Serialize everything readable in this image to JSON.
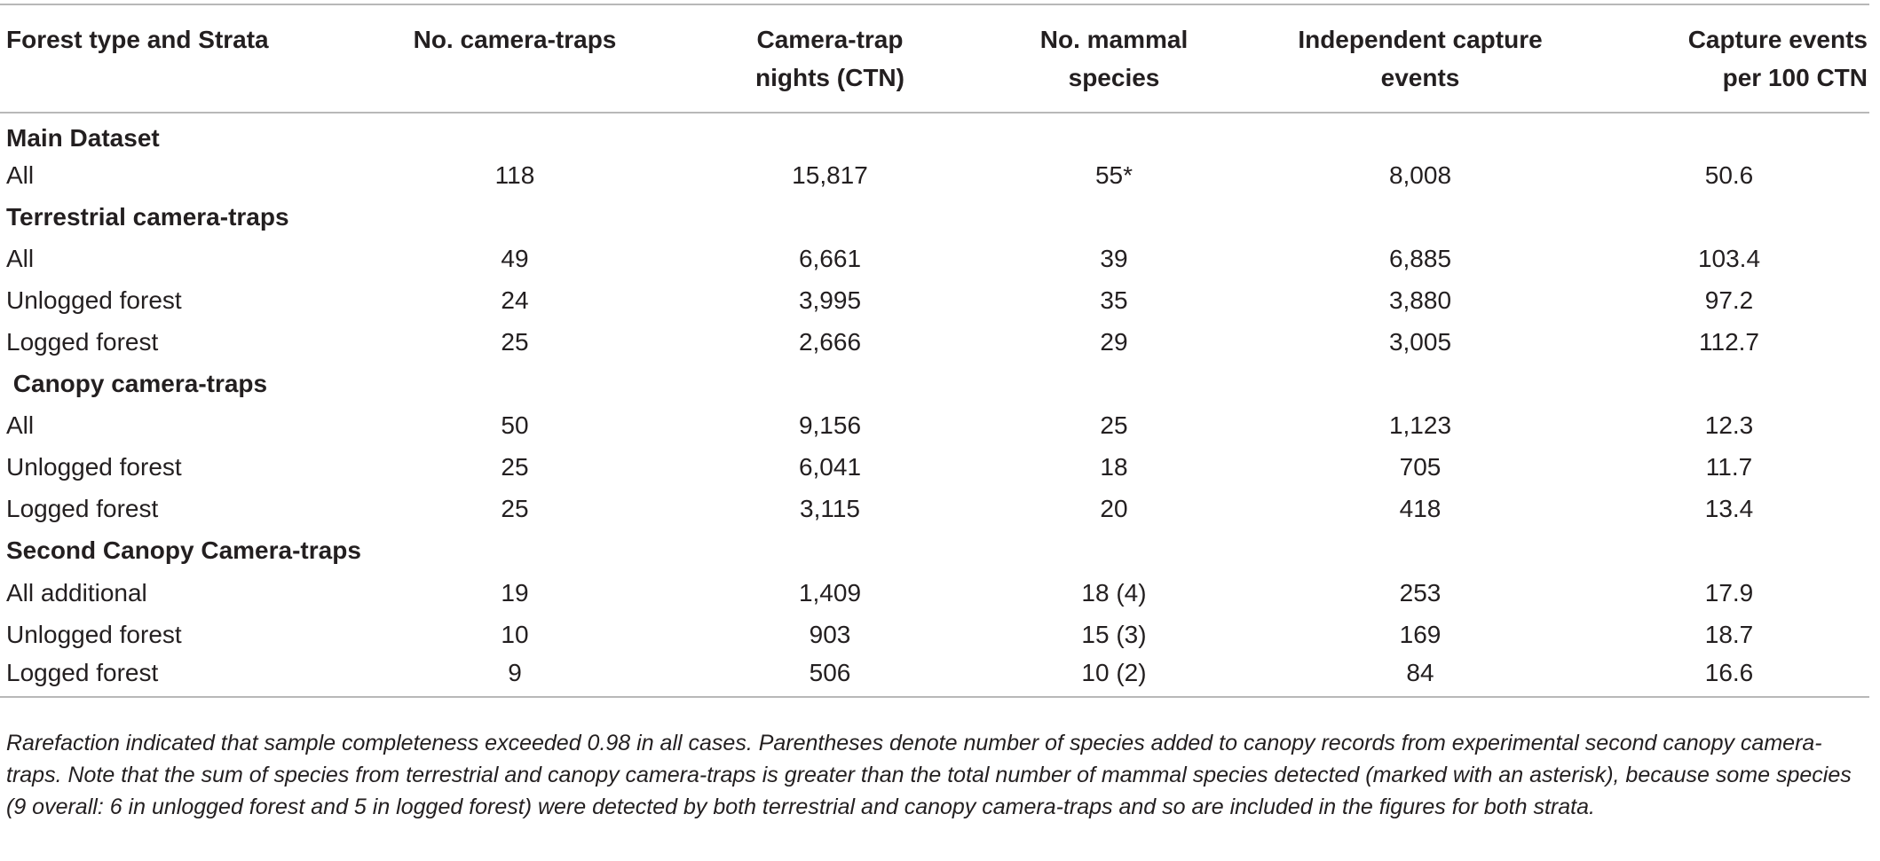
{
  "table": {
    "headers": [
      "Forest type and Strata",
      "No. camera-traps",
      "Camera-trap\nnights (CTN)",
      "No. mammal\nspecies",
      "Independent capture\nevents",
      "Capture events\nper 100 CTN"
    ],
    "rows": [
      {
        "type": "section",
        "label": "Main Dataset"
      },
      {
        "type": "data",
        "label": "All",
        "cells": [
          "118",
          "15,817",
          "55*",
          "8,008",
          "50.6"
        ]
      },
      {
        "type": "section",
        "label": "Terrestrial camera-traps"
      },
      {
        "type": "data",
        "label": "All",
        "cells": [
          "49",
          "6,661",
          "39",
          "6,885",
          "103.4"
        ]
      },
      {
        "type": "data",
        "label": "Unlogged forest",
        "cells": [
          "24",
          "3,995",
          "35",
          "3,880",
          "97.2"
        ]
      },
      {
        "type": "data",
        "label": "Logged forest",
        "cells": [
          "25",
          "2,666",
          "29",
          "3,005",
          "112.7"
        ]
      },
      {
        "type": "section",
        "label": " Canopy camera-traps"
      },
      {
        "type": "data",
        "label": "All",
        "cells": [
          "50",
          "9,156",
          "25",
          "1,123",
          "12.3"
        ]
      },
      {
        "type": "data",
        "label": "Unlogged forest",
        "cells": [
          "25",
          "6,041",
          "18",
          "705",
          "11.7"
        ]
      },
      {
        "type": "data",
        "label": "Logged forest",
        "cells": [
          "25",
          "3,115",
          "20",
          "418",
          "13.4"
        ]
      },
      {
        "type": "section",
        "label": "Second Canopy Camera-traps"
      },
      {
        "type": "data",
        "label": "All additional",
        "cells": [
          "19",
          "1,409",
          "18 (4)",
          "253",
          "17.9"
        ]
      },
      {
        "type": "data",
        "label": "Unlogged forest",
        "cells": [
          "10",
          "903",
          "15 (3)",
          "169",
          "18.7"
        ]
      },
      {
        "type": "data",
        "label": "Logged forest",
        "cells": [
          "9",
          "506",
          "10 (2)",
          "84",
          "16.6"
        ]
      }
    ]
  },
  "footnote": "Rarefaction indicated that sample completeness exceeded 0.98 in all cases. Parentheses denote number of species added to canopy records from experimental second canopy camera-traps. Note that the sum of species from terrestrial and canopy camera-traps is greater than the total number of mammal species detected (marked with an asterisk), because some species (9 overall: 6 in unlogged forest and 5 in logged forest) were detected by both terrestrial and canopy camera-traps and so are included in the figures for both strata."
}
